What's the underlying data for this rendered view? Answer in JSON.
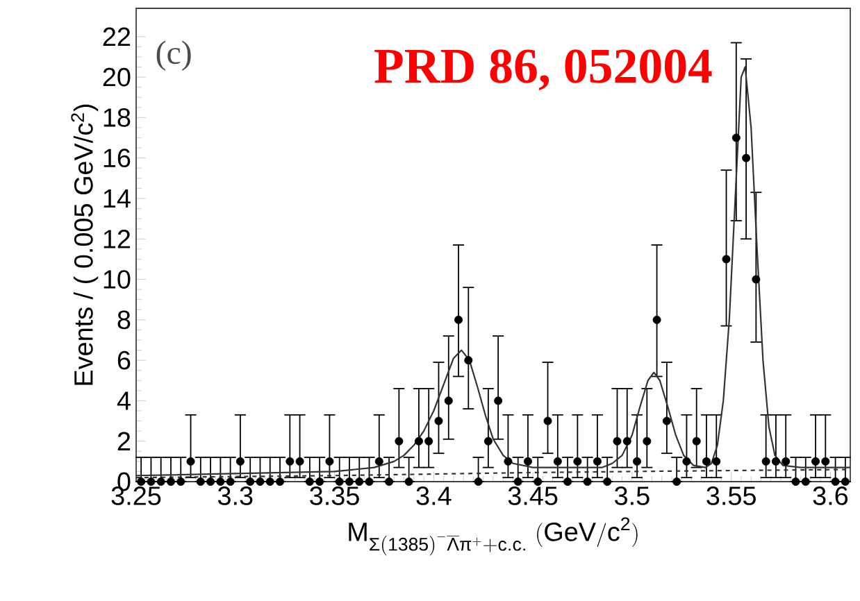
{
  "chart_data": {
    "type": "scatter",
    "xlabel": "\\mathrm{M}_{\\mathrm{Σ(1385)}^{\\mathrm{-}}\\overline{\\mathrm{Λ}}\\mathrm{π}^{\\mathrm{+}}\\mathrm{+c.c.}}\\ \\mathrm{(GeV/c}^{\\mathrm{2}}\\mathrm{)}",
    "ylabel": "Events / ( 0.005 GeV/c$^{2}$)",
    "annotations": [
      "(c)",
      "PRD 86, 052004"
    ],
    "xlim": [
      3.25,
      3.61
    ],
    "ylim": [
      0,
      23.4
    ],
    "xticks": [
      3.25,
      3.3,
      3.35,
      3.4,
      3.45,
      3.5,
      3.55,
      3.6
    ],
    "yticks": [
      0,
      2,
      4,
      6,
      8,
      10,
      12,
      14,
      16,
      18,
      20,
      22
    ],
    "series": [
      {
        "color": "#000000",
        "marker": "circle",
        "x": [
          3.2525,
          3.2575,
          3.2625,
          3.2675,
          3.2725,
          3.2775,
          3.2825,
          3.2875,
          3.2925,
          3.2975,
          3.3025,
          3.3075,
          3.3125,
          3.3175,
          3.3225,
          3.3275,
          3.3325,
          3.3375,
          3.3425,
          3.3475,
          3.3525,
          3.3575,
          3.3625,
          3.3675,
          3.3725,
          3.3775,
          3.3825,
          3.3875,
          3.3925,
          3.3975,
          3.4025,
          3.4075,
          3.4125,
          3.4175,
          3.4225,
          3.4275,
          3.4325,
          3.4375,
          3.4425,
          3.4475,
          3.4525,
          3.4575,
          3.4625,
          3.4675,
          3.4725,
          3.4775,
          3.4825,
          3.4875,
          3.4925,
          3.4975,
          3.5025,
          3.5075,
          3.5125,
          3.5175,
          3.5225,
          3.5275,
          3.5325,
          3.5375,
          3.5425,
          3.5475,
          3.5525,
          3.5575,
          3.5625,
          3.5675,
          3.5725,
          3.5775,
          3.5825,
          3.5875,
          3.5925,
          3.5975,
          3.6025,
          3.6075
        ],
        "values": [
          0,
          0,
          0,
          0,
          0,
          1,
          0,
          0,
          0,
          0,
          1,
          0,
          0,
          0,
          0,
          1,
          1,
          0,
          0,
          1,
          0,
          0,
          0,
          0,
          1,
          0,
          2,
          0,
          2,
          2,
          3,
          4,
          8,
          6,
          0,
          2,
          4,
          1,
          0,
          1,
          0,
          3,
          1,
          0,
          1,
          0,
          1,
          0,
          2,
          2,
          1,
          2,
          8,
          3,
          0,
          1,
          2,
          1,
          1,
          11,
          17,
          16,
          10,
          1,
          1,
          1,
          0,
          0,
          1,
          1,
          0,
          0
        ],
        "errors": [
          [
            0,
            1.2
          ],
          [
            0,
            1.2
          ],
          [
            0,
            1.2
          ],
          [
            0,
            1.2
          ],
          [
            0,
            1.2
          ],
          [
            0.2,
            3.3
          ],
          [
            0,
            1.2
          ],
          [
            0,
            1.2
          ],
          [
            0,
            1.2
          ],
          [
            0,
            1.2
          ],
          [
            0.2,
            3.3
          ],
          [
            0,
            1.2
          ],
          [
            0,
            1.2
          ],
          [
            0,
            1.2
          ],
          [
            0,
            1.2
          ],
          [
            0.2,
            3.3
          ],
          [
            0.2,
            3.3
          ],
          [
            0,
            1.2
          ],
          [
            0,
            1.2
          ],
          [
            0.2,
            3.3
          ],
          [
            0,
            1.2
          ],
          [
            0,
            1.2
          ],
          [
            0,
            1.2
          ],
          [
            0,
            1.2
          ],
          [
            0.2,
            3.3
          ],
          [
            0,
            1.2
          ],
          [
            0.7,
            4.6
          ],
          [
            0,
            1.2
          ],
          [
            0.7,
            4.6
          ],
          [
            0.7,
            4.6
          ],
          [
            1.4,
            5.9
          ],
          [
            2.1,
            7.2
          ],
          [
            5.2,
            11.7
          ],
          [
            3.6,
            9.6
          ],
          [
            0,
            1.2
          ],
          [
            0.7,
            4.6
          ],
          [
            2.1,
            7.2
          ],
          [
            0.2,
            3.3
          ],
          [
            0,
            1.2
          ],
          [
            0.2,
            3.3
          ],
          [
            0,
            1.2
          ],
          [
            1.4,
            5.9
          ],
          [
            0.2,
            3.3
          ],
          [
            0,
            1.2
          ],
          [
            0.2,
            3.3
          ],
          [
            0,
            1.2
          ],
          [
            0.2,
            3.3
          ],
          [
            0,
            1.2
          ],
          [
            0.7,
            4.6
          ],
          [
            0.7,
            4.6
          ],
          [
            0.2,
            3.3
          ],
          [
            0.7,
            4.6
          ],
          [
            5.2,
            11.7
          ],
          [
            1.4,
            5.9
          ],
          [
            0,
            1.2
          ],
          [
            0.2,
            3.3
          ],
          [
            0.7,
            4.6
          ],
          [
            0.2,
            3.3
          ],
          [
            0.2,
            3.3
          ],
          [
            7.7,
            15.4
          ],
          [
            12.9,
            21.7
          ],
          [
            12.0,
            20.9
          ],
          [
            6.9,
            14.3
          ],
          [
            0.2,
            3.3
          ],
          [
            0.2,
            3.3
          ],
          [
            0.2,
            3.3
          ],
          [
            0,
            1.2
          ],
          [
            0,
            1.2
          ],
          [
            0.2,
            3.3
          ],
          [
            0.2,
            3.3
          ],
          [
            0,
            1.2
          ],
          [
            0,
            1.2
          ]
        ]
      },
      {
        "type": "line",
        "color": "#333333",
        "line_style": "solid",
        "x": [
          3.25,
          3.3,
          3.35,
          3.37,
          3.38,
          3.385,
          3.39,
          3.395,
          3.4,
          3.405,
          3.41,
          3.414,
          3.418,
          3.422,
          3.426,
          3.43,
          3.435,
          3.44,
          3.45,
          3.485,
          3.49,
          3.495,
          3.5,
          3.504,
          3.508,
          3.511,
          3.514,
          3.518,
          3.522,
          3.526,
          3.531,
          3.537,
          3.54,
          3.543,
          3.546,
          3.549,
          3.552,
          3.555,
          3.557,
          3.56,
          3.563,
          3.566,
          3.569,
          3.572,
          3.576,
          3.585,
          3.61
        ],
        "values": [
          0.3,
          0.4,
          0.5,
          0.7,
          1.0,
          1.3,
          1.8,
          2.5,
          3.5,
          4.8,
          6.1,
          6.5,
          6.0,
          4.7,
          3.3,
          2.1,
          1.3,
          0.9,
          0.7,
          0.7,
          0.9,
          1.3,
          2.3,
          3.7,
          5.0,
          5.4,
          5.0,
          3.7,
          2.3,
          1.3,
          0.8,
          0.7,
          0.9,
          1.8,
          4.0,
          8.0,
          14.0,
          20.0,
          20.5,
          17.5,
          11.5,
          6.0,
          2.7,
          1.3,
          0.8,
          0.7,
          0.7
        ]
      },
      {
        "type": "line",
        "color": "#333333",
        "line_style": "dashed",
        "x": [
          3.25,
          3.35,
          3.45,
          3.55,
          3.61
        ],
        "values": [
          0.2,
          0.3,
          0.45,
          0.55,
          0.6
        ]
      }
    ]
  }
}
